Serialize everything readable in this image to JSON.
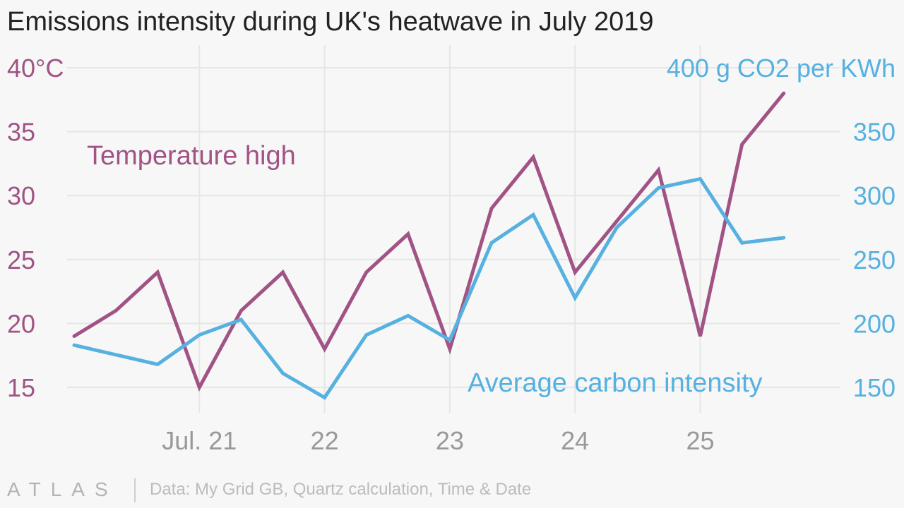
{
  "title": "Emissions intensity during UK's heatwave in July 2019",
  "footer": {
    "brand": "ATLAS",
    "source": "Data: My Grid GB, Quartz calculation, Time & Date"
  },
  "colors": {
    "temperature": "#a05384",
    "carbon": "#56b1e0",
    "grid": "#e6e6e6",
    "x_tick": "#999999",
    "background": "#f7f7f7"
  },
  "chart_data": {
    "type": "line",
    "x_axis": {
      "type": "date",
      "range": [
        "2019-07-20T00:00",
        "2019-07-25T22:00"
      ],
      "ticks": [
        {
          "x": "2019-07-21",
          "label": "Jul. 21"
        },
        {
          "x": "2019-07-22",
          "label": "22"
        },
        {
          "x": "2019-07-23",
          "label": "23"
        },
        {
          "x": "2019-07-24",
          "label": "24"
        },
        {
          "x": "2019-07-25",
          "label": "25"
        }
      ]
    },
    "y_left": {
      "unit_label": "40°C",
      "range": [
        15,
        40
      ],
      "ticks": [
        40,
        35,
        30,
        25,
        20,
        15
      ],
      "tick_labels": [
        "40°C",
        "35",
        "30",
        "25",
        "20",
        "15"
      ]
    },
    "y_right": {
      "unit_label": "400 g CO2 per KWh",
      "range": [
        150,
        400
      ],
      "ticks": [
        400,
        350,
        300,
        250,
        200,
        150
      ],
      "tick_labels": [
        "400 g CO2 per KWh",
        "350",
        "300",
        "250",
        "200",
        "150"
      ]
    },
    "series": [
      {
        "name": "Temperature high",
        "axis": "left",
        "points": [
          [
            "2019-07-20T00:00",
            19
          ],
          [
            "2019-07-20T08:00",
            21
          ],
          [
            "2019-07-20T16:00",
            24
          ],
          [
            "2019-07-21T00:00",
            15
          ],
          [
            "2019-07-21T08:00",
            21
          ],
          [
            "2019-07-21T16:00",
            24
          ],
          [
            "2019-07-22T00:00",
            18
          ],
          [
            "2019-07-22T08:00",
            24
          ],
          [
            "2019-07-22T16:00",
            27
          ],
          [
            "2019-07-23T00:00",
            18
          ],
          [
            "2019-07-23T08:00",
            29
          ],
          [
            "2019-07-23T16:00",
            33
          ],
          [
            "2019-07-24T00:00",
            24
          ],
          [
            "2019-07-24T08:00",
            28
          ],
          [
            "2019-07-24T16:00",
            32
          ],
          [
            "2019-07-25T00:00",
            19
          ],
          [
            "2019-07-25T08:00",
            34
          ],
          [
            "2019-07-25T16:00",
            38
          ]
        ]
      },
      {
        "name": "Average carbon intensity",
        "axis": "right",
        "points": [
          [
            "2019-07-20T00:00",
            183
          ],
          [
            "2019-07-20T16:00",
            168
          ],
          [
            "2019-07-21T00:00",
            191
          ],
          [
            "2019-07-21T08:00",
            203
          ],
          [
            "2019-07-21T16:00",
            161
          ],
          [
            "2019-07-22T00:00",
            142
          ],
          [
            "2019-07-22T08:00",
            191
          ],
          [
            "2019-07-22T16:00",
            206
          ],
          [
            "2019-07-23T00:00",
            187
          ],
          [
            "2019-07-23T08:00",
            263
          ],
          [
            "2019-07-23T16:00",
            285
          ],
          [
            "2019-07-24T00:00",
            220
          ],
          [
            "2019-07-24T08:00",
            275
          ],
          [
            "2019-07-24T16:00",
            306
          ],
          [
            "2019-07-25T00:00",
            313
          ],
          [
            "2019-07-25T08:00",
            263
          ],
          [
            "2019-07-25T16:00",
            267
          ]
        ]
      }
    ],
    "grid": true,
    "legend": "inline labels"
  }
}
